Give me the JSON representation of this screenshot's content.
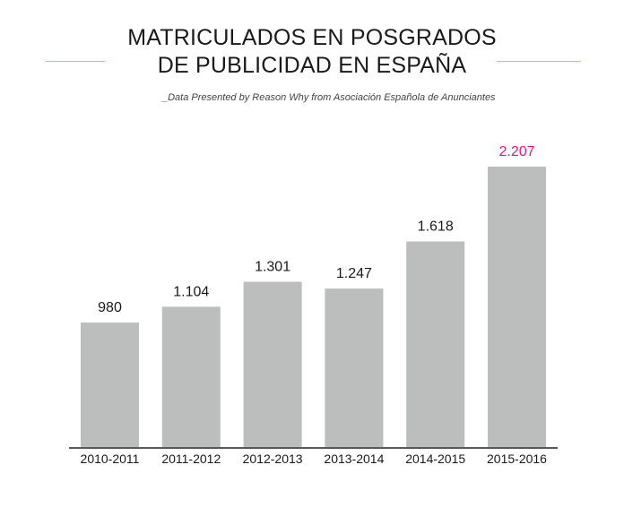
{
  "title": {
    "line1": "MATRICULADOS EN POSGRADOS",
    "line2": "DE PUBLICIDAD EN ESPAÑA"
  },
  "subtitle": "_Data Presented by Reason Why from Asociación Española de Anunciantes",
  "colors": {
    "bar": "#bbbebd",
    "value_text": "#1a1a1a",
    "highlight": "#e6197e",
    "rule": "#7fd3e6",
    "axis": "#222222"
  },
  "chart_data": {
    "type": "bar",
    "categories": [
      "2010-2011",
      "2011-2012",
      "2012-2013",
      "2013-2014",
      "2014-2015",
      "2015-2016"
    ],
    "values": [
      980,
      1104,
      1301,
      1247,
      1618,
      2207
    ],
    "value_labels": [
      "980",
      "1.104",
      "1.301",
      "1.247",
      "1.618",
      "2.207"
    ],
    "highlight_index": 5,
    "title": "MATRICULADOS EN POSGRADOS DE PUBLICIDAD EN ESPAÑA",
    "xlabel": "",
    "ylabel": "",
    "ylim": [
      0,
      2207
    ],
    "grid": false,
    "legend": "none"
  }
}
